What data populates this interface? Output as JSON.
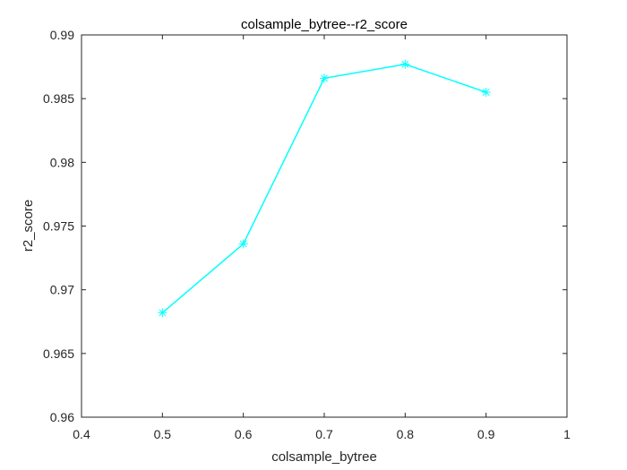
{
  "chart_data": {
    "type": "line",
    "title": "colsample_bytree--r2_score",
    "xlabel": "colsample_bytree",
    "ylabel": "r2_score",
    "xlim": [
      0.4,
      1
    ],
    "ylim": [
      0.96,
      0.99
    ],
    "xticks": [
      "0.4",
      "0.5",
      "0.6",
      "0.7",
      "0.8",
      "0.9",
      "1"
    ],
    "yticks": [
      "0.96",
      "0.965",
      "0.97",
      "0.975",
      "0.98",
      "0.985",
      "0.99"
    ],
    "grid": false,
    "series": [
      {
        "x": [
          0.5,
          0.6,
          0.7,
          0.8,
          0.9
        ],
        "y": [
          0.9682,
          0.9736,
          0.9866,
          0.9877,
          0.9855
        ],
        "color": "#00ffff",
        "marker": "asterisk"
      }
    ]
  }
}
